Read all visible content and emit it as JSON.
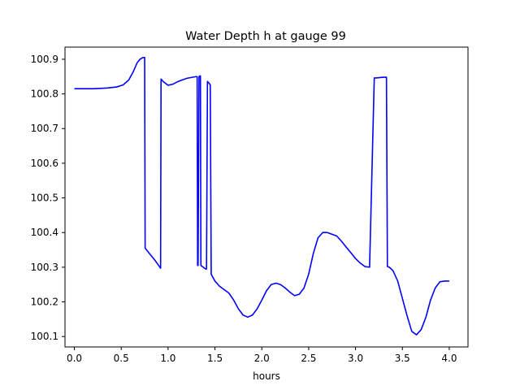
{
  "chart_data": {
    "type": "line",
    "title": "Water Depth h at gauge 99",
    "xlabel": "hours",
    "ylabel": "",
    "xlim": [
      -0.1,
      4.2
    ],
    "ylim": [
      100.07,
      100.935
    ],
    "xticks": [
      0.0,
      0.5,
      1.0,
      1.5,
      2.0,
      2.5,
      3.0,
      3.5,
      4.0
    ],
    "xtick_labels": [
      "0.0",
      "0.5",
      "1.0",
      "1.5",
      "2.0",
      "2.5",
      "3.0",
      "3.5",
      "4.0"
    ],
    "yticks": [
      100.1,
      100.2,
      100.3,
      100.4,
      100.5,
      100.6,
      100.7,
      100.8,
      100.9
    ],
    "ytick_labels": [
      "100.1",
      "100.2",
      "100.3",
      "100.4",
      "100.5",
      "100.6",
      "100.7",
      "100.8",
      "100.9"
    ],
    "grid": false,
    "series": [
      {
        "name": "",
        "color": "#0000ff",
        "x": [
          0.0,
          0.2,
          0.35,
          0.45,
          0.52,
          0.58,
          0.63,
          0.67,
          0.7,
          0.73,
          0.75,
          0.755,
          0.8,
          0.86,
          0.92,
          0.925,
          0.95,
          1.0,
          1.05,
          1.1,
          1.2,
          1.3,
          1.305,
          1.31,
          1.315,
          1.32,
          1.33,
          1.34,
          1.345,
          1.35,
          1.4,
          1.41,
          1.42,
          1.44,
          1.45,
          1.46,
          1.5,
          1.55,
          1.6,
          1.65,
          1.7,
          1.75,
          1.8,
          1.85,
          1.9,
          1.95,
          2.0,
          2.05,
          2.1,
          2.15,
          2.2,
          2.25,
          2.3,
          2.35,
          2.4,
          2.45,
          2.5,
          2.55,
          2.6,
          2.65,
          2.7,
          2.75,
          2.8,
          2.85,
          2.9,
          2.95,
          3.0,
          3.05,
          3.1,
          3.15,
          3.2,
          3.21,
          3.22,
          3.25,
          3.3,
          3.33,
          3.34,
          3.36,
          3.4,
          3.45,
          3.5,
          3.55,
          3.6,
          3.65,
          3.7,
          3.75,
          3.8,
          3.85,
          3.9,
          3.95,
          4.0
        ],
        "y": [
          100.815,
          100.815,
          100.817,
          100.82,
          100.826,
          100.84,
          100.865,
          100.89,
          100.9,
          100.905,
          100.905,
          100.355,
          100.34,
          100.32,
          100.297,
          100.843,
          100.835,
          100.825,
          100.828,
          100.835,
          100.845,
          100.85,
          100.85,
          100.85,
          100.305,
          100.305,
          100.85,
          100.852,
          100.852,
          100.305,
          100.295,
          100.295,
          100.836,
          100.83,
          100.826,
          100.28,
          100.26,
          100.245,
          100.235,
          100.225,
          100.205,
          100.18,
          100.162,
          100.156,
          100.162,
          100.18,
          100.205,
          100.232,
          100.25,
          100.254,
          100.25,
          100.24,
          100.228,
          100.218,
          100.222,
          100.24,
          100.28,
          100.34,
          100.385,
          100.4,
          100.4,
          100.395,
          100.39,
          100.375,
          100.358,
          100.342,
          100.325,
          100.312,
          100.302,
          100.3,
          100.846,
          100.846,
          100.846,
          100.847,
          100.848,
          100.848,
          100.302,
          100.3,
          100.29,
          100.26,
          100.21,
          100.16,
          100.115,
          100.105,
          100.12,
          100.155,
          100.205,
          100.24,
          100.258,
          100.26,
          100.26
        ]
      }
    ]
  }
}
